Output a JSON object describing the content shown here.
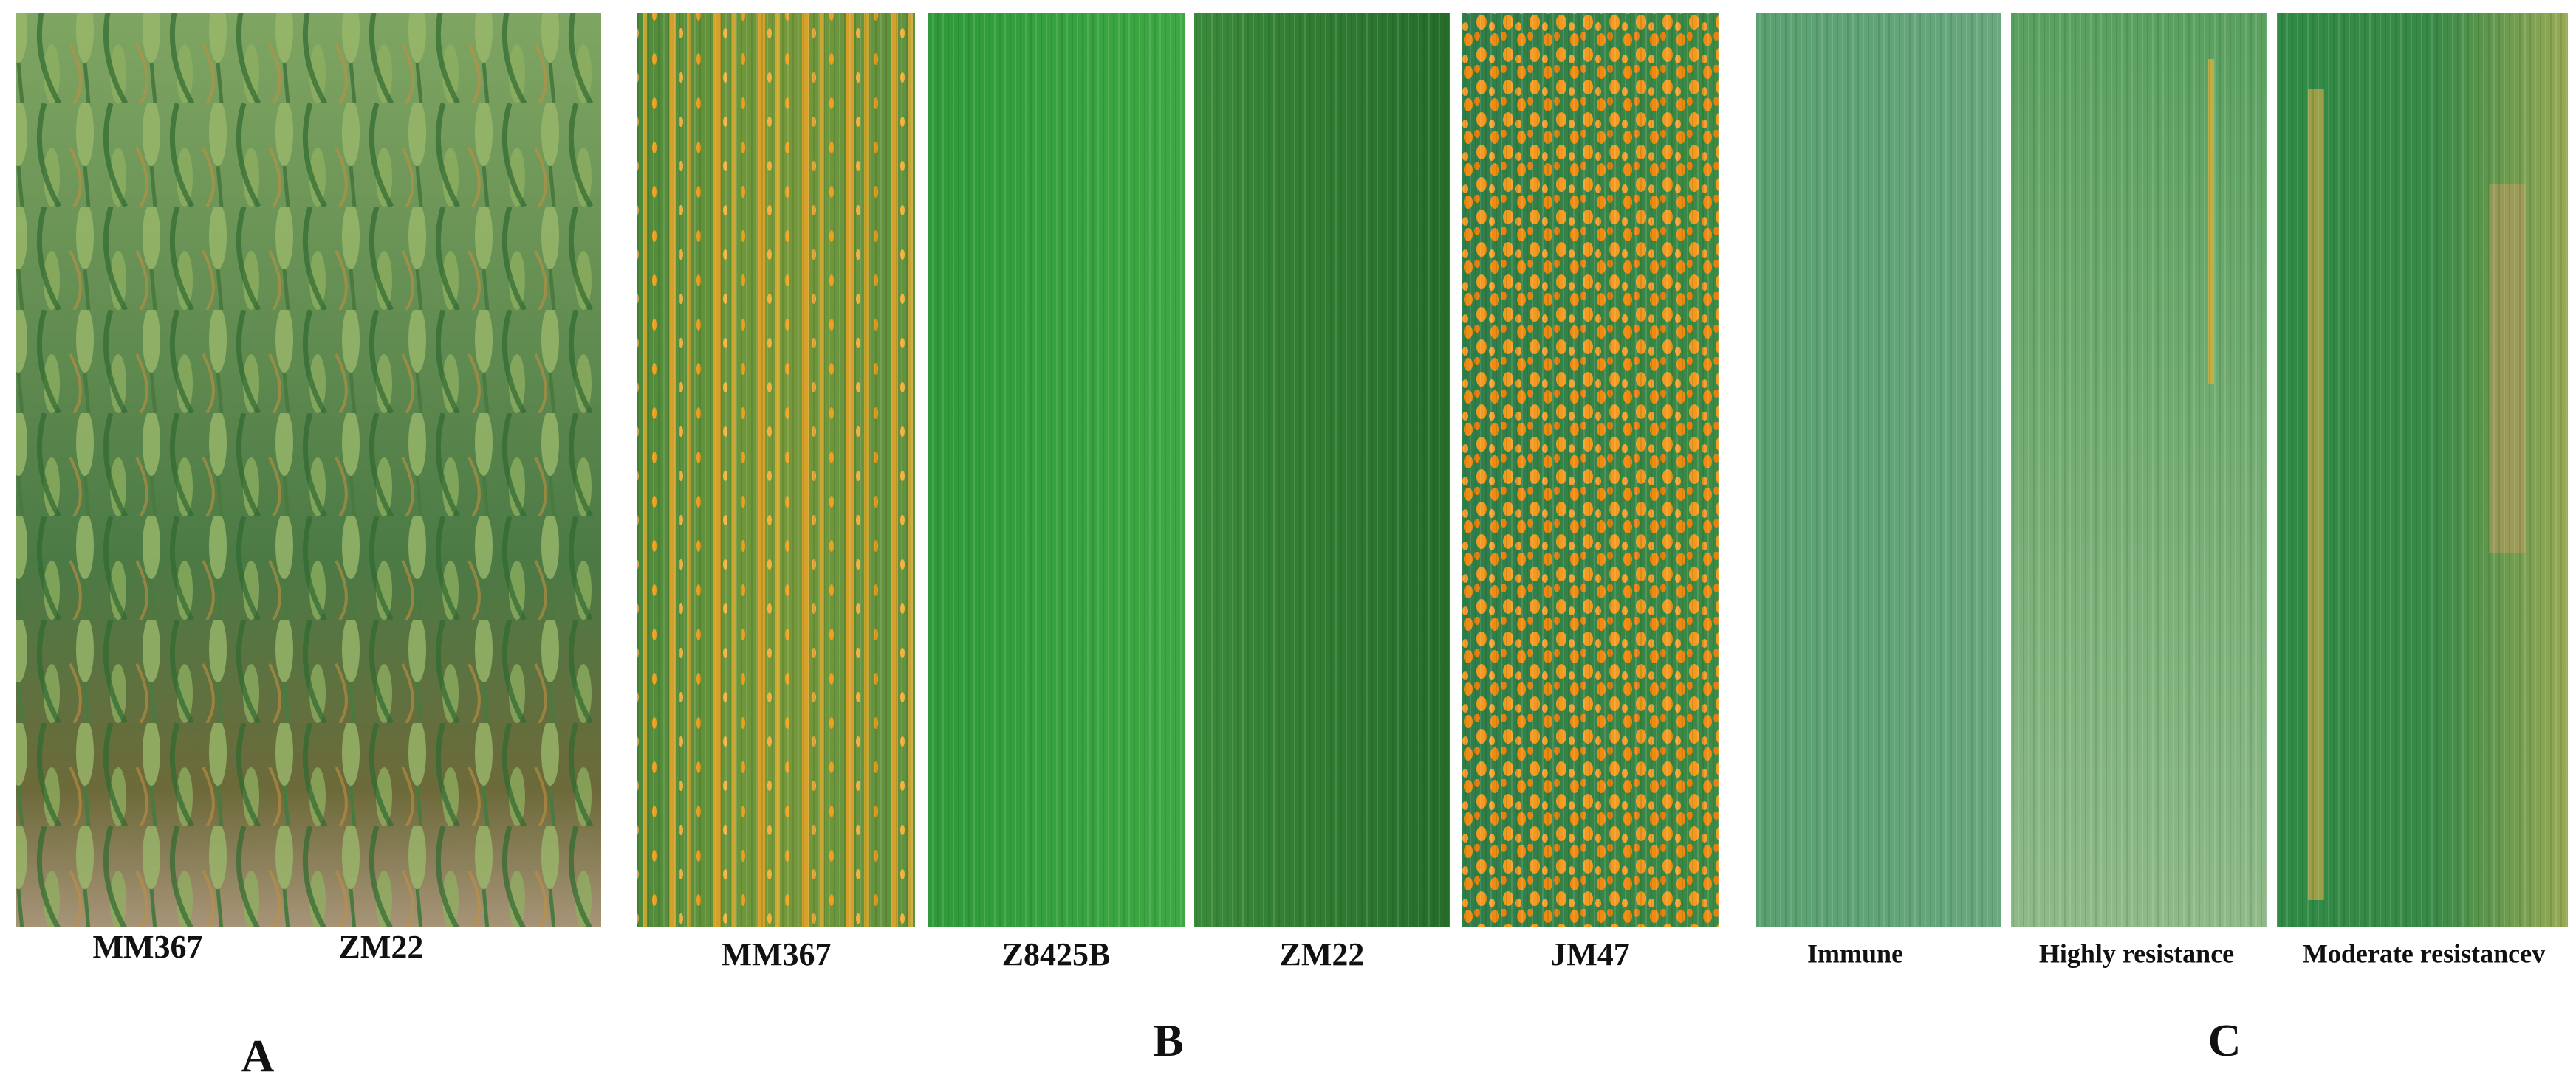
{
  "panels": [
    {
      "letter": "A",
      "labels": [
        "MM367",
        "ZM22"
      ]
    },
    {
      "letter": "B",
      "labels": [
        "MM367",
        "Z8425B",
        "ZM22",
        "JM47"
      ]
    },
    {
      "letter": "C",
      "labels": [
        "Immune",
        "Highly resistance",
        "Moderate resistancev"
      ]
    }
  ]
}
